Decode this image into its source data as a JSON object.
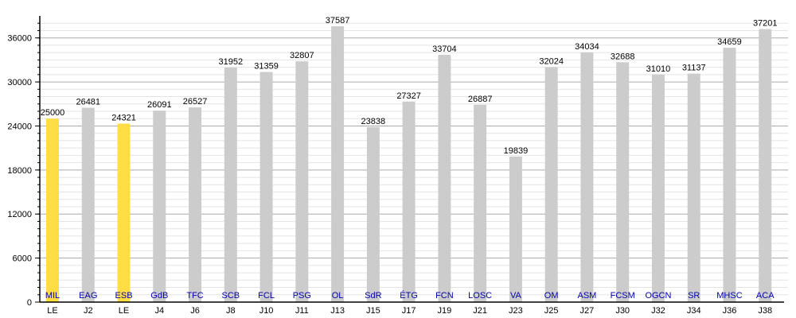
{
  "chart_data": {
    "type": "bar",
    "title": "",
    "xlabel": "",
    "ylabel": "",
    "ylim": [
      0,
      39000
    ],
    "yticks": [
      0,
      6000,
      12000,
      18000,
      24000,
      30000,
      36000
    ],
    "minor_step": 1000,
    "grid": true,
    "categories": [
      "LE",
      "J2",
      "LE",
      "J4",
      "J6",
      "J8",
      "J10",
      "J11",
      "J13",
      "J15",
      "J17",
      "J19",
      "J21",
      "J23",
      "J25",
      "J27",
      "J30",
      "J32",
      "J34",
      "J36",
      "J38"
    ],
    "opponents": [
      "MIL",
      "EAG",
      "ESB",
      "GdB",
      "TFC",
      "SCB",
      "FCL",
      "PSG",
      "OL",
      "SdR",
      "ÉTG",
      "FCN",
      "LOSC",
      "VA",
      "OM",
      "ASM",
      "FCSM",
      "OGCN",
      "SR",
      "MHSC",
      "ACA"
    ],
    "values": [
      25000,
      26481,
      24321,
      26091,
      26527,
      31952,
      31359,
      32807,
      37587,
      23838,
      27327,
      33704,
      26887,
      19839,
      32024,
      34034,
      32688,
      31010,
      31137,
      34659,
      37201
    ],
    "highlight": [
      true,
      false,
      true,
      false,
      false,
      false,
      false,
      false,
      false,
      false,
      false,
      false,
      false,
      false,
      false,
      false,
      false,
      false,
      false,
      false,
      false
    ],
    "colors": {
      "bar": "#cccccc",
      "highlight": "#ffdd44",
      "opponent_label": "#0000aa",
      "major_grid": "#aaaaaa",
      "minor_grid": "#e4e4e4"
    }
  }
}
